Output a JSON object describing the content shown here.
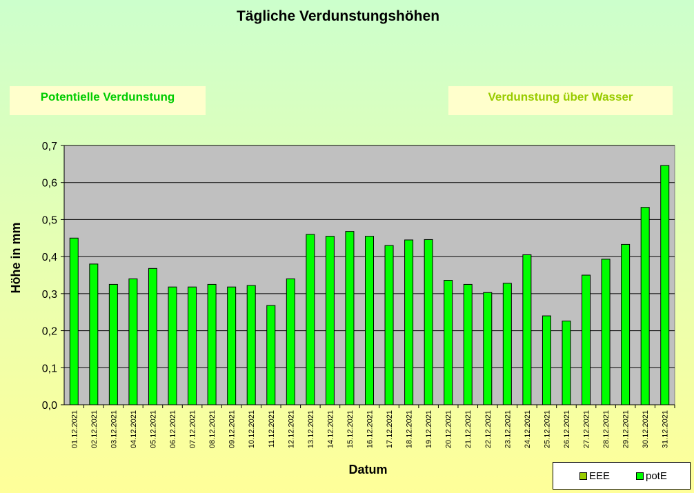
{
  "chart_data": {
    "type": "bar",
    "title": "Tägliche Verdunstungshöhen",
    "xlabel": "Datum",
    "ylabel": "Höhe in mm",
    "ylim": [
      0,
      0.7
    ],
    "yticks": [
      "0,0",
      "0,1",
      "0,2",
      "0,3",
      "0,4",
      "0,5",
      "0,6",
      "0,7"
    ],
    "grid": true,
    "legend_position": "bottom-right",
    "categories": [
      "01.12.2021",
      "02.12.2021",
      "03.12.2021",
      "04.12.2021",
      "05.12.2021",
      "06.12.2021",
      "07.12.2021",
      "08.12.2021",
      "09.12.2021",
      "10.12.2021",
      "11.12.2021",
      "12.12.2021",
      "13.12.2021",
      "14.12.2021",
      "15.12.2021",
      "16.12.2021",
      "17.12.2021",
      "18.12.2021",
      "19.12.2021",
      "20.12.2021",
      "21.12.2021",
      "22.12.2021",
      "23.12.2021",
      "24.12.2021",
      "25.12.2021",
      "26.12.2021",
      "27.12.2021",
      "28.12.2021",
      "29.12.2021",
      "30.12.2021",
      "31.12.2021"
    ],
    "series": [
      {
        "name": "potE",
        "color": "#00ff00",
        "values": [
          0.45,
          0.38,
          0.325,
          0.34,
          0.368,
          0.318,
          0.318,
          0.325,
          0.318,
          0.322,
          0.268,
          0.34,
          0.46,
          0.455,
          0.468,
          0.455,
          0.43,
          0.445,
          0.446,
          0.336,
          0.325,
          0.303,
          0.328,
          0.405,
          0.24,
          0.226,
          0.35,
          0.393,
          0.433,
          0.533,
          0.646
        ]
      }
    ],
    "legend": [
      {
        "name": "EEE",
        "color": "#99cc00"
      },
      {
        "name": "potE",
        "color": "#00ff00"
      }
    ],
    "plot_background": "#c0c0c0"
  },
  "tags": {
    "potential": "Potentielle Verdunstung",
    "wasser": "Verdunstung über Wasser"
  }
}
